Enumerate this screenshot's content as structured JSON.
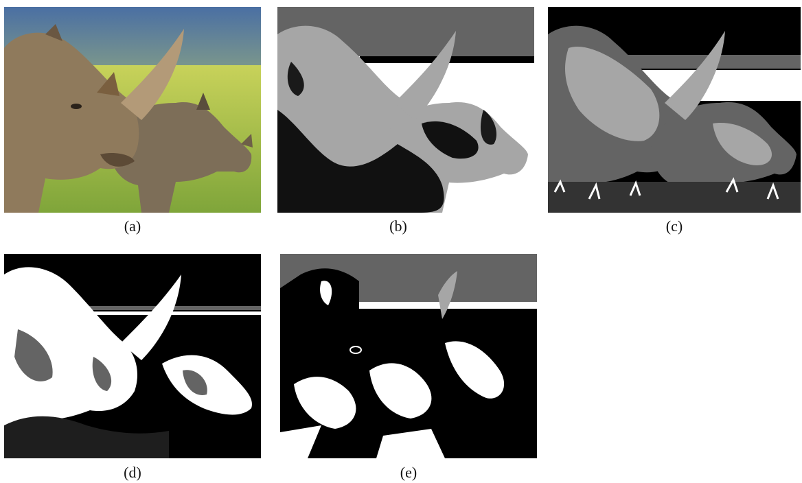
{
  "figure": {
    "panels": [
      {
        "id": "a",
        "caption": "(a)",
        "kind": "photograph",
        "subject": "two rhinoceroses on grass"
      },
      {
        "id": "b",
        "caption": "(b)",
        "kind": "segmentation",
        "levels": 3
      },
      {
        "id": "c",
        "caption": "(c)",
        "kind": "segmentation",
        "levels": 4
      },
      {
        "id": "d",
        "caption": "(d)",
        "kind": "segmentation",
        "levels": 3
      },
      {
        "id": "e",
        "caption": "(e)",
        "kind": "segmentation",
        "levels": 3
      }
    ],
    "colors": {
      "sky": "#4f6f9c",
      "grass": "#a9c246",
      "rhino": "#8a7a63",
      "black": "#000000",
      "dark_gray": "#646464",
      "light_gray": "#a6a6a6",
      "white": "#ffffff"
    }
  }
}
